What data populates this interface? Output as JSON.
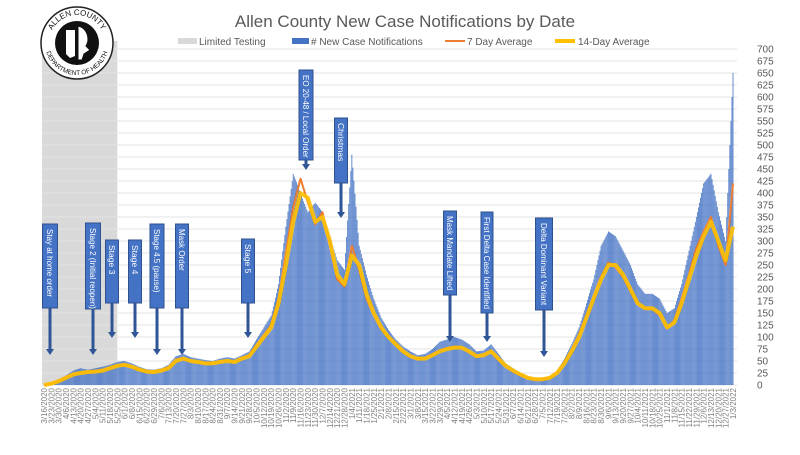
{
  "logo": {
    "text_top": "ALLEN COUNTY",
    "text_bottom": "DEPARTMENT OF HEALTH"
  },
  "chart_data": {
    "type": "bar",
    "title": "Allen County New Case Notifications by Date",
    "xlabel": "",
    "ylabel": "",
    "ylim": [
      0,
      700
    ],
    "ytick_step": 25,
    "grid": true,
    "legend_position": "top",
    "legend": [
      {
        "label": "Limited Testing",
        "color": "#D9D9D9",
        "kind": "area"
      },
      {
        "label": "# New Case Notifications",
        "color": "#4472C4",
        "kind": "bar"
      },
      {
        "label": "7 Day Average",
        "color": "#ED7D31",
        "kind": "line"
      },
      {
        "label": "14-Day Average",
        "color": "#FFC000",
        "kind": "line"
      }
    ],
    "limited_testing_range": [
      "3/16/2020",
      "5/25/2020"
    ],
    "x": [
      "3/16/2020",
      "3/23/2020",
      "3/30/2020",
      "4/6/2020",
      "4/13/2020",
      "4/20/2020",
      "4/27/2020",
      "5/4/2020",
      "5/11/2020",
      "5/18/2020",
      "5/25/2020",
      "6/1/2020",
      "6/8/2020",
      "6/15/2020",
      "6/22/2020",
      "6/29/2020",
      "7/6/2020",
      "7/13/2020",
      "7/20/2020",
      "7/27/2020",
      "8/3/2020",
      "8/10/2020",
      "8/17/2020",
      "8/24/2020",
      "8/31/2020",
      "9/7/2020",
      "9/14/2020",
      "9/21/2020",
      "9/28/2020",
      "10/5/2020",
      "10/12/2020",
      "10/19/2020",
      "10/26/2020",
      "11/2/2020",
      "11/9/2020",
      "11/16/2020",
      "11/23/2020",
      "11/30/2020",
      "12/7/2020",
      "12/14/2020",
      "12/21/2020",
      "12/28/2020",
      "1/4/2021",
      "1/11/2021",
      "1/18/2021",
      "1/25/2021",
      "2/1/2021",
      "2/8/2021",
      "2/15/2021",
      "2/22/2021",
      "3/1/2021",
      "3/8/2021",
      "3/15/2021",
      "3/22/2021",
      "3/29/2021",
      "4/5/2021",
      "4/12/2021",
      "4/19/2021",
      "4/26/2021",
      "5/3/2021",
      "5/10/2021",
      "5/17/2021",
      "5/24/2021",
      "5/31/2021",
      "6/7/2021",
      "6/14/2021",
      "6/21/2021",
      "6/28/2021",
      "7/5/2021",
      "7/12/2021",
      "7/19/2021",
      "7/26/2021",
      "8/2/2021",
      "8/9/2021",
      "8/16/2021",
      "8/23/2021",
      "8/30/2021",
      "9/6/2021",
      "9/13/2021",
      "9/20/2021",
      "9/27/2021",
      "10/4/2021",
      "10/11/2021",
      "10/18/2021",
      "10/25/2021",
      "11/1/2021",
      "11/8/2021",
      "11/15/2021",
      "11/22/2021",
      "11/29/2021",
      "12/6/2021",
      "12/13/2021",
      "12/20/2021",
      "12/27/2021",
      "1/3/2022"
    ],
    "series": [
      {
        "name": "# New Case Notifications",
        "type": "bar",
        "color": "#4472C4",
        "values": [
          0,
          5,
          12,
          20,
          30,
          35,
          32,
          35,
          38,
          42,
          48,
          50,
          45,
          38,
          33,
          32,
          35,
          42,
          60,
          65,
          58,
          55,
          52,
          50,
          55,
          58,
          55,
          62,
          70,
          95,
          120,
          145,
          210,
          330,
          440,
          400,
          360,
          380,
          360,
          310,
          260,
          240,
          480,
          290,
          230,
          180,
          140,
          115,
          95,
          80,
          70,
          62,
          65,
          75,
          90,
          95,
          100,
          95,
          85,
          70,
          72,
          85,
          65,
          45,
          35,
          25,
          18,
          15,
          15,
          18,
          30,
          55,
          85,
          120,
          170,
          220,
          290,
          320,
          310,
          280,
          250,
          210,
          190,
          190,
          180,
          150,
          160,
          210,
          280,
          350,
          420,
          440,
          360,
          300,
          650
        ]
      },
      {
        "name": "7 Day Average",
        "type": "line",
        "color": "#ED7D31",
        "values": [
          0,
          3,
          9,
          16,
          23,
          26,
          27,
          28,
          31,
          36,
          41,
          43,
          37,
          31,
          28,
          27,
          31,
          37,
          53,
          56,
          50,
          48,
          45,
          46,
          49,
          51,
          48,
          56,
          62,
          84,
          104,
          125,
          180,
          275,
          370,
          430,
          380,
          335,
          360,
          290,
          220,
          205,
          290,
          240,
          180,
          145,
          118,
          98,
          83,
          68,
          58,
          54,
          56,
          64,
          72,
          77,
          80,
          77,
          68,
          60,
          64,
          72,
          52,
          38,
          28,
          20,
          14,
          12,
          12,
          16,
          27,
          48,
          74,
          105,
          145,
          185,
          225,
          255,
          245,
          225,
          195,
          168,
          160,
          158,
          145,
          118,
          135,
          180,
          230,
          285,
          320,
          350,
          290,
          250,
          420
        ]
      },
      {
        "name": "14-Day Average",
        "type": "line",
        "color": "#FFC000",
        "values": [
          0,
          3,
          8,
          15,
          22,
          25,
          27,
          28,
          30,
          35,
          40,
          42,
          38,
          32,
          28,
          27,
          30,
          35,
          50,
          55,
          50,
          48,
          45,
          45,
          48,
          50,
          48,
          55,
          60,
          80,
          100,
          120,
          170,
          250,
          340,
          400,
          390,
          340,
          350,
          300,
          230,
          210,
          270,
          250,
          190,
          150,
          120,
          100,
          85,
          70,
          60,
          55,
          55,
          62,
          70,
          75,
          78,
          78,
          70,
          60,
          62,
          70,
          55,
          40,
          30,
          22,
          15,
          12,
          12,
          15,
          25,
          45,
          70,
          100,
          140,
          180,
          220,
          250,
          250,
          230,
          200,
          170,
          160,
          160,
          150,
          120,
          130,
          170,
          220,
          270,
          310,
          340,
          300,
          260,
          330
        ]
      }
    ],
    "annotations": [
      {
        "label": "Stay at home order",
        "date": "3/24/2020"
      },
      {
        "label": "Stage 2 (Initial reopen)",
        "date": "5/4/2020"
      },
      {
        "label": "Stage 3",
        "date": "5/22/2020"
      },
      {
        "label": "Stage 4",
        "date": "6/12/2020"
      },
      {
        "label": "Stage 4.5 (pause)",
        "date": "7/4/2020"
      },
      {
        "label": "Mask Order",
        "date": "7/27/2020"
      },
      {
        "label": "Stage 5",
        "date": "9/26/2020"
      },
      {
        "label": "EO 20-48 / Local Order",
        "date": "11/16/2020"
      },
      {
        "label": "Christmas",
        "date": "12/25/2020"
      },
      {
        "label": "Mask Mandate Lifted",
        "date": "4/6/2021"
      },
      {
        "label": "First Delta Case Identified",
        "date": "5/7/2021"
      },
      {
        "label": "Delta Dominant Variant",
        "date": "6/28/2021"
      }
    ]
  }
}
